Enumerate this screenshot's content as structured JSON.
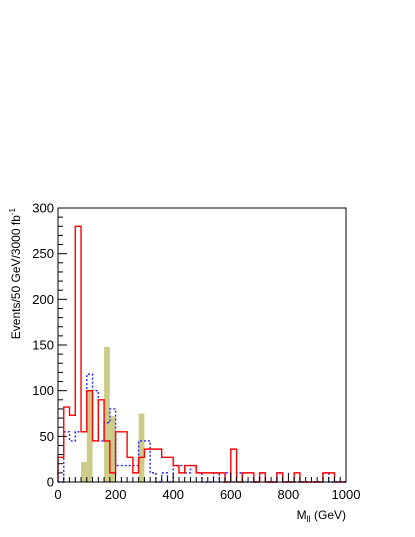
{
  "chart_data": {
    "type": "histogram",
    "x": {
      "label_main": "M",
      "label_sub": "ll",
      "label_unit": " (GeV)",
      "range": [
        0,
        1000
      ],
      "ticks": [
        0,
        200,
        400,
        600,
        800,
        1000
      ]
    },
    "y": {
      "label_main": "Events/50 GeV/3000 fb",
      "label_sup": "-1",
      "range": [
        0,
        300
      ],
      "ticks": [
        0,
        50,
        100,
        150,
        200,
        250,
        300
      ]
    },
    "bin_width": 20,
    "series": [
      {
        "style": "filled",
        "color": "#cccc88",
        "bins": [
          {
            "x": 80,
            "y": 22
          },
          {
            "x": 100,
            "y": 100
          },
          {
            "x": 160,
            "y": 148
          },
          {
            "x": 180,
            "y": 72
          },
          {
            "x": 280,
            "y": 75
          }
        ]
      },
      {
        "style": "dotted",
        "color": "#2222ff",
        "edges": [
          0,
          20,
          40,
          60,
          80,
          100,
          120,
          140,
          160,
          180,
          200,
          220,
          240,
          260,
          280,
          300,
          320,
          340,
          360,
          380,
          400,
          420,
          440,
          460,
          480,
          500,
          520,
          540,
          560,
          580,
          600,
          620,
          640,
          660,
          680,
          700,
          720,
          740,
          760,
          780,
          800,
          820,
          840,
          860,
          880,
          900,
          920,
          940,
          960,
          980,
          1000
        ],
        "values": [
          0,
          55,
          45,
          55,
          55,
          118,
          100,
          45,
          65,
          80,
          18,
          18,
          18,
          18,
          45,
          45,
          10,
          0,
          10,
          0,
          18,
          18,
          10,
          18,
          10,
          0,
          0,
          10,
          0,
          10,
          0,
          10,
          0,
          0,
          0,
          10,
          0,
          0,
          10,
          0,
          0,
          0,
          0,
          0,
          0,
          0,
          10,
          0,
          0,
          0
        ]
      },
      {
        "style": "solid",
        "color": "#ff0000",
        "edges": [
          0,
          20,
          40,
          60,
          80,
          100,
          120,
          140,
          160,
          180,
          200,
          220,
          240,
          260,
          280,
          300,
          320,
          340,
          360,
          380,
          400,
          420,
          440,
          460,
          480,
          500,
          520,
          540,
          560,
          580,
          600,
          620,
          640,
          660,
          680,
          700,
          720,
          740,
          760,
          780,
          800,
          820,
          840,
          860,
          880,
          900,
          920,
          940,
          960,
          980,
          1000
        ],
        "values": [
          27,
          82,
          73,
          280,
          55,
          100,
          45,
          90,
          45,
          10,
          55,
          55,
          27,
          10,
          27,
          36,
          36,
          36,
          27,
          27,
          18,
          10,
          18,
          18,
          10,
          10,
          10,
          10,
          10,
          0,
          36,
          0,
          10,
          10,
          0,
          10,
          0,
          0,
          10,
          0,
          0,
          10,
          0,
          0,
          0,
          0,
          10,
          10,
          0,
          0
        ]
      }
    ]
  }
}
